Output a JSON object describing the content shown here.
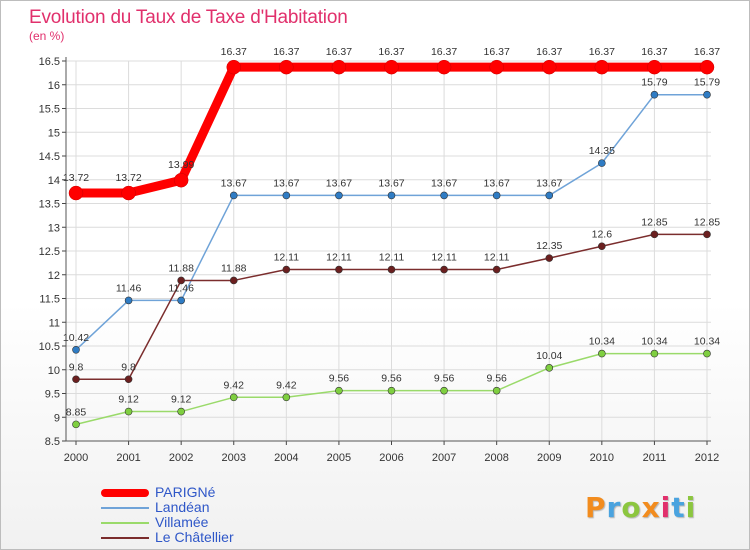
{
  "header": {
    "title": "Evolution du Taux de Taxe d'Habitation",
    "unit": "(en %)"
  },
  "logo": {
    "text": "Proxiti",
    "letters": [
      "P",
      "r",
      "o",
      "x",
      "i",
      "t",
      "i"
    ],
    "colors": [
      "#f28c1e",
      "#4aa3df",
      "#8cc63f",
      "#f28c1e",
      "#e1306c",
      "#4aa3df",
      "#8cc63f"
    ]
  },
  "chart_data": {
    "type": "line",
    "title": "Evolution du Taux de Taxe d'Habitation",
    "ylabel": "(en %)",
    "xlabel": "",
    "x": [
      "2000",
      "2001",
      "2002",
      "2003",
      "2004",
      "2005",
      "2006",
      "2007",
      "2008",
      "2009",
      "2010",
      "2011",
      "2012"
    ],
    "ylim": [
      8.5,
      16.5
    ],
    "yticks": [
      "8.5",
      "9",
      "9.5",
      "10",
      "10.5",
      "11",
      "11.5",
      "12",
      "12.5",
      "13",
      "13.5",
      "14",
      "14.5",
      "15",
      "15.5",
      "16",
      "16.5"
    ],
    "grid": true,
    "legend_position": "bottom-left",
    "series": [
      {
        "name": "PARIGNé",
        "color": "#ff0000",
        "values": [
          13.72,
          13.72,
          13.99,
          16.37,
          16.37,
          16.37,
          16.37,
          16.37,
          16.37,
          16.37,
          16.37,
          16.37,
          16.37
        ],
        "labels": [
          "13.72",
          "13.72",
          "13.99",
          "16.37",
          "16.37",
          "16.37",
          "16.37",
          "16.37",
          "16.37",
          "16.37",
          "16.37",
          "16.37",
          "16.37"
        ]
      },
      {
        "name": "Landéan",
        "color": "#6fa3d8",
        "values": [
          10.42,
          11.46,
          11.46,
          13.67,
          13.67,
          13.67,
          13.67,
          13.67,
          13.67,
          13.67,
          14.35,
          15.79,
          15.79
        ],
        "labels": [
          "10.42",
          "11.46",
          "11.46",
          "13.67",
          "13.67",
          "13.67",
          "13.67",
          "13.67",
          "13.67",
          "13.67",
          "14.35",
          "15.79",
          "15.79"
        ]
      },
      {
        "name": "Villamée",
        "color": "#9ada6a",
        "values": [
          8.85,
          9.12,
          9.12,
          9.42,
          9.42,
          9.56,
          9.56,
          9.56,
          9.56,
          10.04,
          10.34,
          10.34,
          10.34
        ],
        "labels": [
          "8.85",
          "9.12",
          "9.12",
          "9.42",
          "9.42",
          "9.56",
          "9.56",
          "9.56",
          "9.56",
          "10.04",
          "10.34",
          "10.34",
          "10.34"
        ]
      },
      {
        "name": "Le Châtellier",
        "color": "#7b2d2d",
        "values": [
          9.8,
          9.8,
          11.88,
          11.88,
          12.11,
          12.11,
          12.11,
          12.11,
          12.11,
          12.35,
          12.6,
          12.85,
          12.85
        ],
        "labels": [
          "9.8",
          "9.8",
          "11.88",
          "11.88",
          "12.11",
          "12.11",
          "12.11",
          "12.11",
          "12.11",
          "12.35",
          "12.6",
          "12.85",
          "12.85"
        ]
      }
    ]
  }
}
